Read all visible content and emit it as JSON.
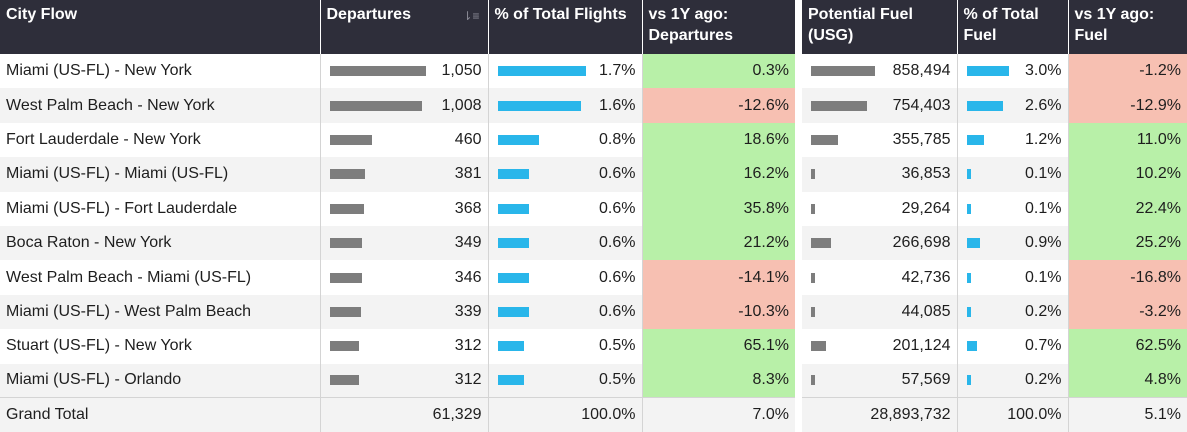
{
  "left_headers": [
    "City Flow",
    "Departures",
    "% of Total Flights",
    "vs 1Y ago: Departures"
  ],
  "right_headers": [
    "Potential Fuel (USG)",
    "% of Total Fuel",
    "vs 1Y ago: Fuel"
  ],
  "sort_icon": "sort-descending-icon",
  "colors": {
    "header": "#2e2e3a",
    "gray_bar": "#7d7d7d",
    "blue_bar": "#29b6ea",
    "positive": "#b8f0a8",
    "negative": "#f7c0b2"
  },
  "rows": [
    {
      "city_flow": "Miami (US-FL) - New York",
      "departures": "1,050",
      "departures_value": 1050,
      "pct_flights": "1.7%",
      "pct_flights_value": 1.7,
      "vs_dep": "0.3%",
      "fuel": "858,494",
      "fuel_value": 858494,
      "pct_fuel": "3.0%",
      "pct_fuel_value": 3.0,
      "vs_fuel": "-1.2%"
    },
    {
      "city_flow": "West Palm Beach - New York",
      "departures": "1,008",
      "departures_value": 1008,
      "pct_flights": "1.6%",
      "pct_flights_value": 1.6,
      "vs_dep": "-12.6%",
      "fuel": "754,403",
      "fuel_value": 754403,
      "pct_fuel": "2.6%",
      "pct_fuel_value": 2.6,
      "vs_fuel": "-12.9%"
    },
    {
      "city_flow": "Fort Lauderdale - New York",
      "departures": "460",
      "departures_value": 460,
      "pct_flights": "0.8%",
      "pct_flights_value": 0.8,
      "vs_dep": "18.6%",
      "fuel": "355,785",
      "fuel_value": 355785,
      "pct_fuel": "1.2%",
      "pct_fuel_value": 1.2,
      "vs_fuel": "11.0%"
    },
    {
      "city_flow": "Miami (US-FL) - Miami (US-FL)",
      "departures": "381",
      "departures_value": 381,
      "pct_flights": "0.6%",
      "pct_flights_value": 0.6,
      "vs_dep": "16.2%",
      "fuel": "36,853",
      "fuel_value": 36853,
      "pct_fuel": "0.1%",
      "pct_fuel_value": 0.1,
      "vs_fuel": "10.2%"
    },
    {
      "city_flow": "Miami (US-FL) - Fort Lauderdale",
      "departures": "368",
      "departures_value": 368,
      "pct_flights": "0.6%",
      "pct_flights_value": 0.6,
      "vs_dep": "35.8%",
      "fuel": "29,264",
      "fuel_value": 29264,
      "pct_fuel": "0.1%",
      "pct_fuel_value": 0.1,
      "vs_fuel": "22.4%"
    },
    {
      "city_flow": "Boca Raton - New York",
      "departures": "349",
      "departures_value": 349,
      "pct_flights": "0.6%",
      "pct_flights_value": 0.6,
      "vs_dep": "21.2%",
      "fuel": "266,698",
      "fuel_value": 266698,
      "pct_fuel": "0.9%",
      "pct_fuel_value": 0.9,
      "vs_fuel": "25.2%"
    },
    {
      "city_flow": "West Palm Beach - Miami (US-FL)",
      "departures": "346",
      "departures_value": 346,
      "pct_flights": "0.6%",
      "pct_flights_value": 0.6,
      "vs_dep": "-14.1%",
      "fuel": "42,736",
      "fuel_value": 42736,
      "pct_fuel": "0.1%",
      "pct_fuel_value": 0.1,
      "vs_fuel": "-16.8%"
    },
    {
      "city_flow": "Miami (US-FL) - West Palm Beach",
      "departures": "339",
      "departures_value": 339,
      "pct_flights": "0.6%",
      "pct_flights_value": 0.6,
      "vs_dep": "-10.3%",
      "fuel": "44,085",
      "fuel_value": 44085,
      "pct_fuel": "0.2%",
      "pct_fuel_value": 0.2,
      "vs_fuel": "-3.2%"
    },
    {
      "city_flow": "Stuart (US-FL) - New York",
      "departures": "312",
      "departures_value": 312,
      "pct_flights": "0.5%",
      "pct_flights_value": 0.5,
      "vs_dep": "65.1%",
      "fuel": "201,124",
      "fuel_value": 201124,
      "pct_fuel": "0.7%",
      "pct_fuel_value": 0.7,
      "vs_fuel": "62.5%"
    },
    {
      "city_flow": "Miami (US-FL) - Orlando",
      "departures": "312",
      "departures_value": 312,
      "pct_flights": "0.5%",
      "pct_flights_value": 0.5,
      "vs_dep": "8.3%",
      "fuel": "57,569",
      "fuel_value": 57569,
      "pct_fuel": "0.2%",
      "pct_fuel_value": 0.2,
      "vs_fuel": "4.8%"
    }
  ],
  "total": {
    "label": "Grand Total",
    "departures": "61,329",
    "pct_flights": "100.0%",
    "vs_dep": "7.0%",
    "fuel": "28,893,732",
    "pct_fuel": "100.0%",
    "vs_fuel": "5.1%"
  }
}
